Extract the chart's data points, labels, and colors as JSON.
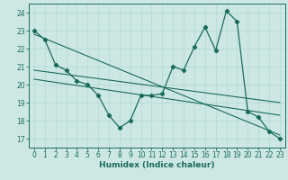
{
  "xlabel": "Humidex (Indice chaleur)",
  "bg_color": "#cde8e4",
  "line_color": "#1a6b5a",
  "grid_color": "#b8dcd8",
  "xlim": [
    -0.5,
    23.5
  ],
  "ylim": [
    16.5,
    24.5
  ],
  "xticks": [
    0,
    1,
    2,
    3,
    4,
    5,
    6,
    7,
    8,
    9,
    10,
    11,
    12,
    13,
    14,
    15,
    16,
    17,
    18,
    19,
    20,
    21,
    22,
    23
  ],
  "yticks": [
    17,
    18,
    19,
    20,
    21,
    22,
    23,
    24
  ],
  "series1_x": [
    0,
    1,
    2,
    3,
    4,
    5,
    6,
    7,
    8,
    9,
    10,
    11,
    12,
    13,
    14,
    15,
    16,
    17,
    18,
    19,
    20,
    21,
    22,
    23
  ],
  "series1_y": [
    23.0,
    22.5,
    21.1,
    20.8,
    20.2,
    20.0,
    19.4,
    18.3,
    17.6,
    18.0,
    19.4,
    19.4,
    19.5,
    21.0,
    20.8,
    22.1,
    23.2,
    21.9,
    24.1,
    23.5,
    18.5,
    18.2,
    17.4,
    17.0
  ],
  "series2_x": [
    0,
    23
  ],
  "series2_y": [
    22.8,
    17.2
  ],
  "series3_x": [
    0,
    23
  ],
  "series3_y": [
    20.8,
    19.0
  ],
  "series4_x": [
    0,
    23
  ],
  "series4_y": [
    20.3,
    18.3
  ]
}
